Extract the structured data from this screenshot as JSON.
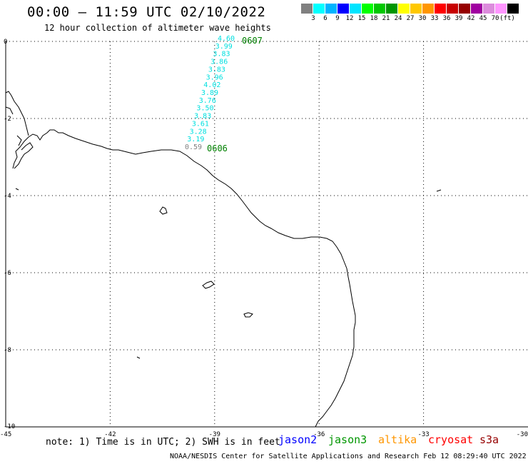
{
  "header": {
    "title": "00:00 – 11:59 UTC 02/10/2022",
    "subtitle": "12 hour collection of altimeter wave heights"
  },
  "colorbar": {
    "colors": [
      "#808080",
      "#00ffff",
      "#00b4ff",
      "#0000ff",
      "#00e4ff",
      "#00ff00",
      "#00c800",
      "#009600",
      "#ffff00",
      "#ffc800",
      "#ff9600",
      "#ff0000",
      "#c80000",
      "#960000",
      "#a000a0",
      "#dc8cdc",
      "#ff96ff",
      "#000000"
    ],
    "labels": [
      "3",
      "6",
      "9",
      "12",
      "15",
      "18",
      "21",
      "24",
      "27",
      "30",
      "33",
      "36",
      "39",
      "42",
      "45",
      "70",
      "(ft)"
    ]
  },
  "map": {
    "x_ticks": [
      "-45",
      "-42",
      "-39",
      "-36",
      "-33",
      "-30"
    ],
    "y_ticks": [
      "0",
      "-2",
      "-4",
      "-6",
      "-8",
      "-10"
    ],
    "track_values": [
      "4.60",
      "3.99",
      "3.83",
      "3.86",
      "3.83",
      "3.96",
      "4.02",
      "3.89",
      "3.76",
      "3.50",
      "3.83",
      "3.61",
      "3.28",
      "3.19",
      "0.59"
    ],
    "time_labels": [
      "0607",
      "0606"
    ],
    "cyan_color": "#00e0e0",
    "gray_color": "#808080",
    "time_color": "#008000"
  },
  "footer": {
    "note": "note: 1) Time is in UTC; 2) SWH is in feet",
    "satellites": [
      {
        "name": "jason2",
        "color": "#0000ff"
      },
      {
        "name": "jason3",
        "color": "#009600"
      },
      {
        "name": "altika",
        "color": "#ff9600"
      },
      {
        "name": "cryosat",
        "color": "#ff0000"
      },
      {
        "name": "s3a",
        "color": "#960000"
      }
    ],
    "credit": "NOAA/NESDIS Center for Satellite Applications and Research    Feb 12 08:29:40 UTC 2022"
  }
}
